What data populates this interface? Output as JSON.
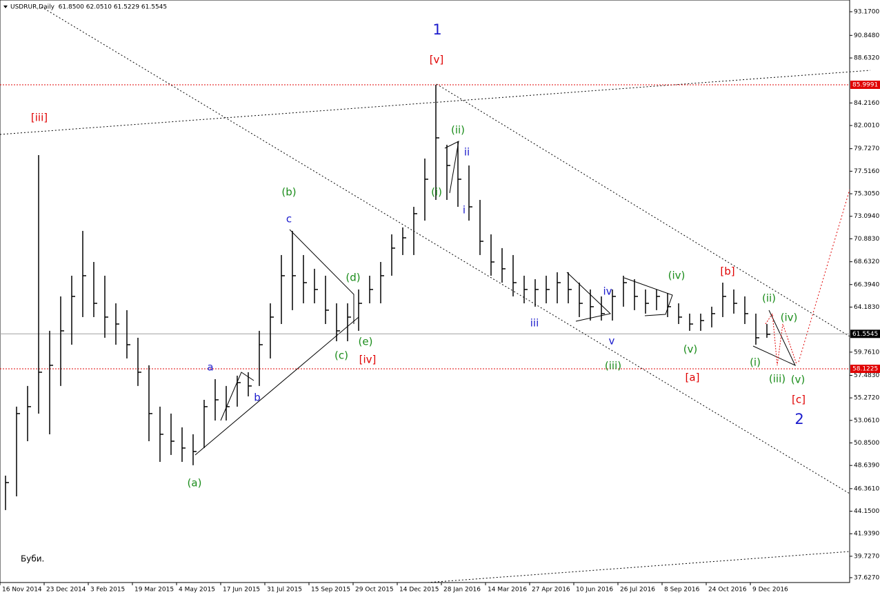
{
  "chart_data": {
    "type": "hlc",
    "title": "USDRUR,Daily  61.8500 62.0510 61.5229 61.5545",
    "note": "Буби.",
    "bar_color": "#000000",
    "ylim": [
      37.15,
      94.32
    ],
    "yticks": [
      {
        "value": 93.17,
        "label": "93.1700"
      },
      {
        "value": 90.848,
        "label": "90.8480"
      },
      {
        "value": 88.632,
        "label": "88.6320"
      },
      {
        "value": 84.216,
        "label": "84.2160"
      },
      {
        "value": 82.001,
        "label": "82.0010"
      },
      {
        "value": 79.727,
        "label": "79.7270"
      },
      {
        "value": 77.516,
        "label": "77.5160"
      },
      {
        "value": 75.305,
        "label": "75.3050"
      },
      {
        "value": 73.094,
        "label": "73.0940"
      },
      {
        "value": 70.883,
        "label": "70.8830"
      },
      {
        "value": 68.632,
        "label": "68.6320"
      },
      {
        "value": 66.394,
        "label": "66.3940"
      },
      {
        "value": 64.183,
        "label": "64.1830"
      },
      {
        "value": 59.761,
        "label": "59.7610"
      },
      {
        "value": 57.483,
        "label": "57.4830"
      },
      {
        "value": 55.272,
        "label": "55.2720"
      },
      {
        "value": 53.061,
        "label": "53.0610"
      },
      {
        "value": 50.85,
        "label": "50.8500"
      },
      {
        "value": 48.639,
        "label": "48.6390"
      },
      {
        "value": 46.361,
        "label": "46.3610"
      },
      {
        "value": 44.15,
        "label": "44.1500"
      },
      {
        "value": 41.939,
        "label": "41.9390"
      },
      {
        "value": 39.727,
        "label": "39.7270"
      },
      {
        "value": 37.627,
        "label": "37.6270"
      }
    ],
    "categories": [
      "16 Nov 2014",
      null,
      null,
      null,
      "23 Dec 2014",
      null,
      null,
      null,
      "3 Feb 2015",
      null,
      null,
      null,
      "19 Mar 2015",
      null,
      null,
      null,
      "4 May 2015",
      null,
      null,
      null,
      "17 Jun 2015",
      null,
      null,
      null,
      "31 Jul 2015",
      null,
      null,
      null,
      "15 Sep 2015",
      null,
      null,
      null,
      "29 Oct 2015",
      null,
      null,
      null,
      "14 Dec 2015",
      null,
      null,
      null,
      "28 Jan 2016",
      null,
      null,
      null,
      "14 Mar 2016",
      null,
      null,
      null,
      "27 Apr 2016",
      null,
      null,
      null,
      "10 Jun 2016",
      null,
      null,
      null,
      "26 Jul 2016",
      null,
      null,
      null,
      "8 Sep 2016",
      null,
      null,
      null,
      "24 Oct 2016",
      null,
      null,
      null,
      "9 Dec 2016",
      null
    ],
    "high": [
      47.64,
      54.41,
      56.44,
      79.1,
      61.85,
      65.23,
      67.26,
      71.66,
      68.61,
      67.26,
      64.55,
      63.88,
      61.17,
      58.47,
      54.41,
      53.73,
      52.38,
      51.7,
      55.08,
      57.11,
      56.44,
      57.45,
      57.79,
      61.85,
      64.55,
      69.29,
      71.66,
      69.29,
      67.94,
      67.26,
      64.55,
      64.55,
      65.91,
      67.26,
      68.61,
      71.32,
      72.0,
      74.02,
      78.76,
      86.0,
      80.11,
      80.45,
      78.08,
      74.7,
      71.32,
      69.97,
      69.29,
      67.26,
      66.92,
      67.26,
      67.6,
      67.6,
      66.58,
      65.91,
      65.23,
      65.91,
      67.26,
      66.92,
      65.91,
      65.91,
      65.57,
      64.55,
      63.54,
      63.54,
      64.22,
      66.58,
      65.91,
      65.23,
      63.54,
      62.52
    ],
    "low": [
      44.26,
      45.61,
      51.02,
      53.73,
      51.7,
      56.44,
      60.49,
      63.2,
      63.2,
      61.17,
      60.49,
      59.14,
      56.44,
      51.02,
      48.99,
      49.67,
      48.99,
      48.66,
      50.35,
      53.05,
      53.05,
      54.41,
      55.42,
      56.44,
      59.14,
      62.52,
      63.88,
      64.55,
      64.55,
      62.52,
      60.83,
      60.83,
      61.85,
      64.55,
      64.55,
      67.26,
      69.29,
      69.29,
      72.67,
      74.7,
      74.7,
      74.02,
      72.67,
      69.29,
      67.26,
      66.58,
      65.23,
      64.55,
      64.22,
      64.55,
      64.55,
      64.55,
      63.2,
      62.86,
      62.86,
      62.86,
      64.22,
      63.88,
      63.54,
      63.88,
      63.2,
      62.52,
      61.85,
      61.85,
      62.19,
      63.2,
      63.54,
      62.52,
      60.49,
      61.17
    ],
    "close": [
      46.96,
      53.73,
      54.41,
      57.79,
      58.47,
      61.85,
      65.23,
      67.26,
      64.55,
      63.2,
      62.52,
      60.49,
      57.79,
      53.73,
      51.7,
      51.02,
      50.35,
      50.01,
      54.41,
      55.08,
      54.41,
      56.77,
      56.44,
      60.49,
      63.2,
      67.26,
      67.26,
      66.58,
      65.91,
      63.88,
      61.85,
      63.2,
      64.55,
      65.91,
      67.26,
      69.97,
      70.98,
      73.35,
      76.73,
      80.79,
      78.08,
      76.73,
      74.02,
      70.64,
      68.61,
      67.94,
      66.58,
      65.91,
      65.91,
      65.91,
      66.58,
      65.91,
      64.55,
      64.22,
      63.54,
      65.23,
      66.58,
      65.23,
      64.55,
      65.23,
      64.22,
      63.2,
      62.52,
      62.86,
      63.54,
      65.23,
      64.55,
      63.54,
      61.17,
      61.51
    ],
    "hlines": [
      {
        "value": 85.9991,
        "label": "85.9991",
        "color": "#e00000"
      },
      {
        "value": 58.1225,
        "label": "58.1225",
        "color": "#e00000"
      },
      {
        "value": 61.5545,
        "label": "61.5545",
        "color": "#a0a0a0"
      }
    ],
    "annotations": [
      {
        "text": "1",
        "color": "#1a1acc"
      },
      {
        "text": "[v]",
        "color": "#e00000"
      },
      {
        "text": "[iii]",
        "color": "#e00000"
      },
      {
        "text": "(ii)",
        "color": "#1a8c1a"
      },
      {
        "text": "ii",
        "color": "#1a1acc"
      },
      {
        "text": "(i)",
        "color": "#1a8c1a"
      },
      {
        "text": "i",
        "color": "#1a1acc"
      },
      {
        "text": "(b)",
        "color": "#1a8c1a"
      },
      {
        "text": "c",
        "color": "#1a1acc"
      },
      {
        "text": "(d)",
        "color": "#1a8c1a"
      },
      {
        "text": "(e)",
        "color": "#1a8c1a"
      },
      {
        "text": "(c)",
        "color": "#1a8c1a"
      },
      {
        "text": "[iv]",
        "color": "#e00000"
      },
      {
        "text": "a",
        "color": "#1a1acc"
      },
      {
        "text": "b",
        "color": "#1a1acc"
      },
      {
        "text": "(a)",
        "color": "#1a8c1a"
      },
      {
        "text": "iii",
        "color": "#1a1acc"
      },
      {
        "text": "iv",
        "color": "#1a1acc"
      },
      {
        "text": "v",
        "color": "#1a1acc"
      },
      {
        "text": "(iii)",
        "color": "#1a8c1a"
      },
      {
        "text": "(iv)",
        "color": "#1a8c1a"
      },
      {
        "text": "(v)",
        "color": "#1a8c1a"
      },
      {
        "text": "[a]",
        "color": "#e00000"
      },
      {
        "text": "[b]",
        "color": "#e00000"
      },
      {
        "text": "(ii)",
        "color": "#1a8c1a"
      },
      {
        "text": "(iv)",
        "color": "#1a8c1a"
      },
      {
        "text": "(i)",
        "color": "#1a8c1a"
      },
      {
        "text": "(iii)",
        "color": "#1a8c1a"
      },
      {
        "text": "(v)",
        "color": "#1a8c1a"
      },
      {
        "text": "[c]",
        "color": "#e00000"
      },
      {
        "text": "2",
        "color": "#1a1acc"
      }
    ]
  }
}
